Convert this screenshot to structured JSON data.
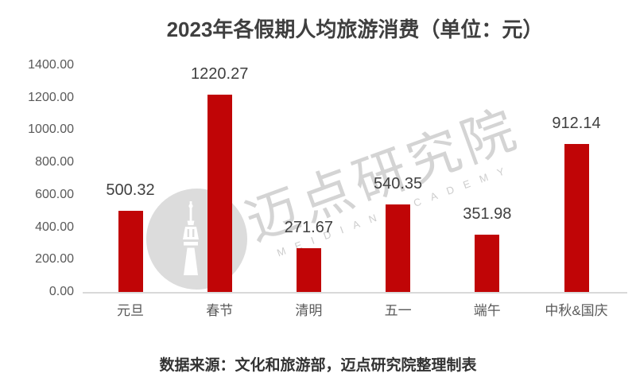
{
  "title": "2023年各假期人均旅游消费（单位：元）",
  "source_note": "数据来源：文化和旅游部，迈点研究院整理制表",
  "watermark": {
    "cn_text": "迈点研究院",
    "en_text": "MEIDIAN ACADEMY",
    "logo_icon": "tower-icon"
  },
  "colors": {
    "bar": "#c00506",
    "axis_line": "#d9d9d9",
    "title_text": "#3f3f3f",
    "tick_text": "#595959",
    "value_label_text": "#404040",
    "watermark_gray": "#d4d4d4",
    "watermark_circle": "#dcdcdc"
  },
  "chart_data": {
    "type": "bar",
    "title": "2023年各假期人均旅游消费（单位：元）",
    "categories": [
      "元旦",
      "春节",
      "清明",
      "五一",
      "端午",
      "中秋&国庆"
    ],
    "values": [
      500.32,
      1220.27,
      271.67,
      540.35,
      351.98,
      912.14
    ],
    "value_labels": [
      "500.32",
      "1220.27",
      "271.67",
      "540.35",
      "351.98",
      "912.14"
    ],
    "xlabel": "",
    "ylabel": "",
    "ylim": [
      0,
      1400
    ],
    "y_tick_step": 200,
    "y_tick_labels": [
      "0.00",
      "200.00",
      "400.00",
      "600.00",
      "800.00",
      "1000.00",
      "1200.00",
      "1400.00"
    ],
    "grid": false,
    "legend": false,
    "data_labels": true,
    "bar_color": "#c00506"
  }
}
